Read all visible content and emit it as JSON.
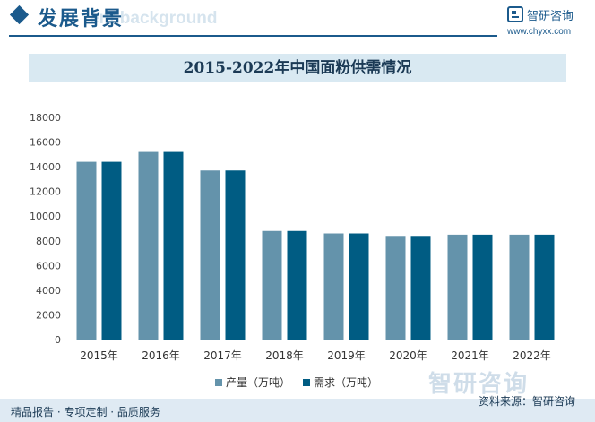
{
  "header": {
    "title": "发展背景",
    "subtitle": "ent background"
  },
  "brand": {
    "name": "智研咨询",
    "url": "www.chyxx.com",
    "logo_icon": "chyxx-logo-icon",
    "color": "#1b5a8c"
  },
  "chart_data": {
    "type": "bar",
    "title": "2015-2022年中国面粉供需情况",
    "categories": [
      "2015年",
      "2016年",
      "2017年",
      "2018年",
      "2019年",
      "2020年",
      "2021年",
      "2022年"
    ],
    "series": [
      {
        "name": "产量（万吨）",
        "values": [
          14400,
          15200,
          13700,
          8800,
          8600,
          8400,
          8500,
          8500
        ],
        "color": "#6493ab"
      },
      {
        "name": "需求（万吨）",
        "values": [
          14400,
          15200,
          13700,
          8800,
          8600,
          8400,
          8500,
          8500
        ],
        "color": "#005c83"
      }
    ],
    "ylim": [
      0,
      18000
    ],
    "yticks": [
      0,
      2000,
      4000,
      6000,
      8000,
      10000,
      12000,
      14000,
      16000,
      18000
    ],
    "xlabel": "",
    "ylabel": "",
    "grid": false,
    "legend": "bottom-center"
  },
  "footer": {
    "left": "精品报告 · 专项定制 · 品质服务",
    "source": "资料来源：智研咨询",
    "watermark": "智研咨询"
  }
}
